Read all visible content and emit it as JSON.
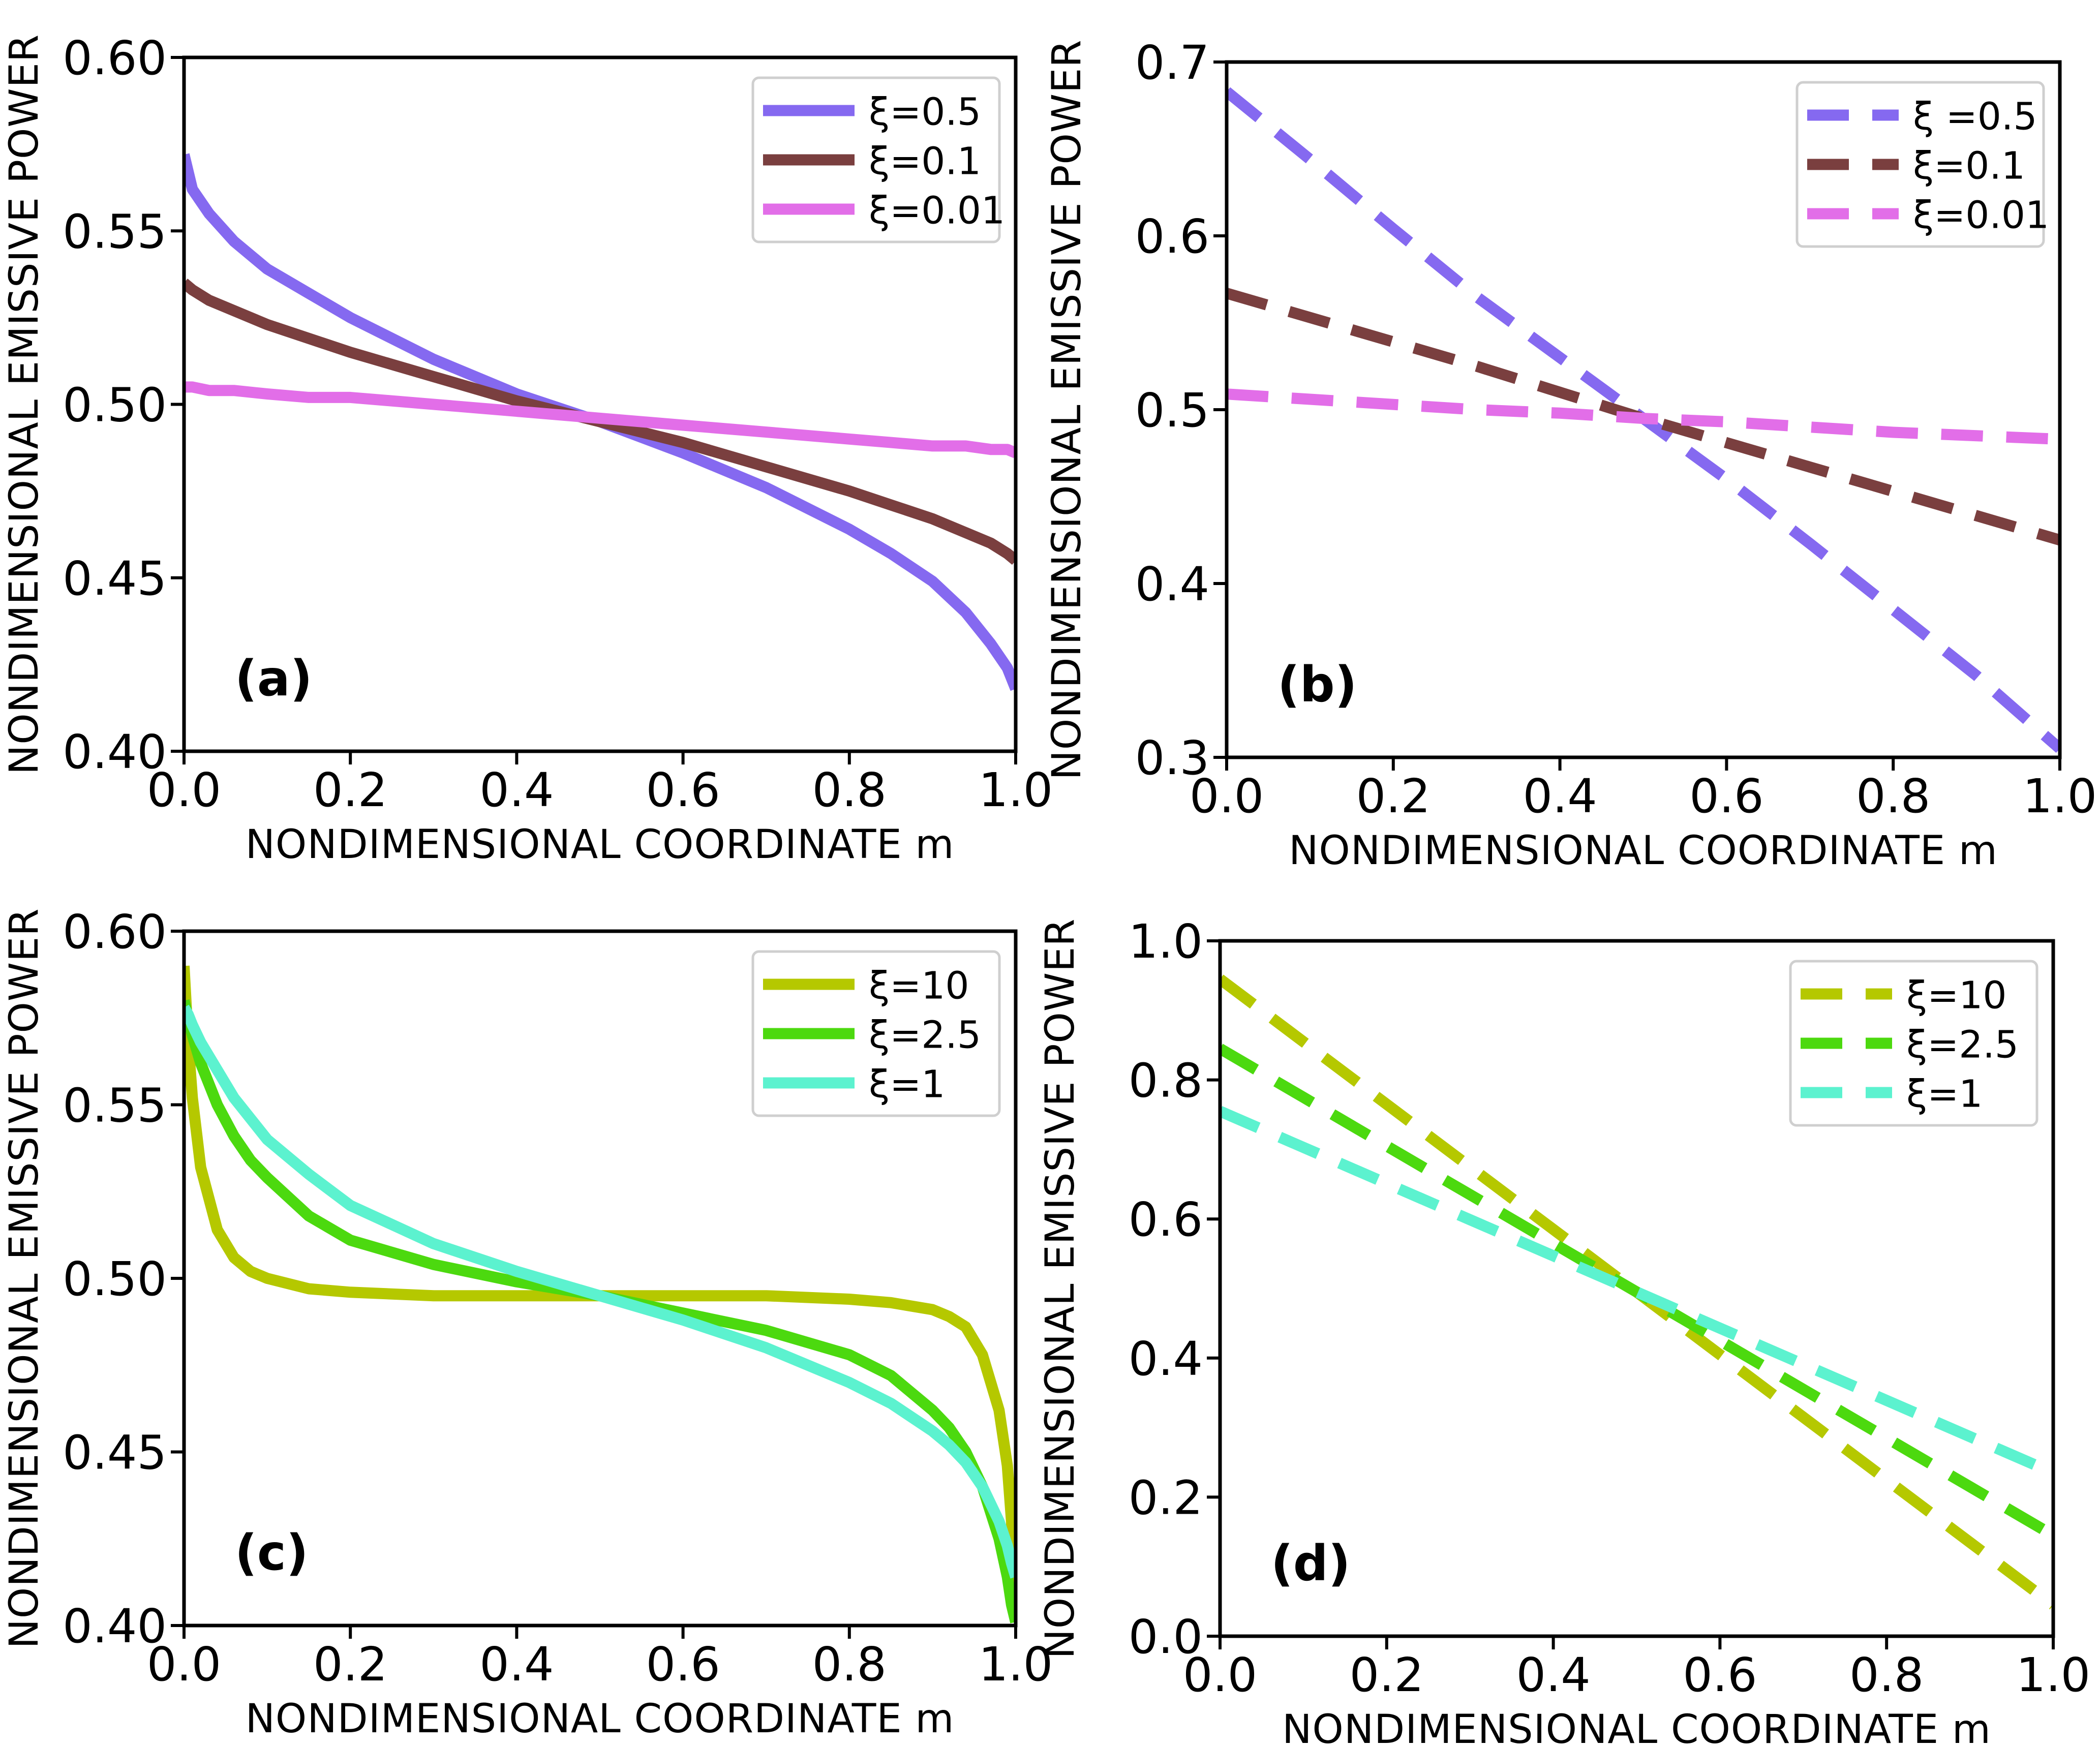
{
  "chart_data": [
    {
      "panel": "(a)",
      "type": "line",
      "line_style": "solid",
      "xlabel": "NONDIMENSIONAL COORDINATE m",
      "ylabel": "NONDIMENSIONAL EMISSIVE POWER",
      "xlim": [
        0.0,
        1.0
      ],
      "ylim": [
        0.4,
        0.6
      ],
      "xticks": [
        "0.0",
        "0.2",
        "0.4",
        "0.6",
        "0.8",
        "1.0"
      ],
      "yticks": [
        "0.40",
        "0.45",
        "0.50",
        "0.55",
        "0.60"
      ],
      "legend_position": "top-right",
      "grid": false,
      "x": [
        0.0,
        0.01,
        0.03,
        0.06,
        0.1,
        0.15,
        0.2,
        0.3,
        0.4,
        0.5,
        0.6,
        0.7,
        0.8,
        0.85,
        0.9,
        0.94,
        0.97,
        0.99,
        1.0
      ],
      "series": [
        {
          "name": "ξ=0.5",
          "color": "#8569f0",
          "values": [
            0.572,
            0.562,
            0.555,
            0.547,
            0.539,
            0.532,
            0.525,
            0.513,
            0.503,
            0.495,
            0.486,
            0.476,
            0.464,
            0.457,
            0.449,
            0.44,
            0.431,
            0.424,
            0.418
          ]
        },
        {
          "name": "ξ=0.1",
          "color": "#7a3f3f",
          "values": [
            0.535,
            0.533,
            0.53,
            0.527,
            0.523,
            0.519,
            0.515,
            0.508,
            0.501,
            0.495,
            0.489,
            0.482,
            0.475,
            0.471,
            0.467,
            0.463,
            0.46,
            0.457,
            0.455
          ]
        },
        {
          "name": "ξ=0.01",
          "color": "#e26ee8",
          "values": [
            0.505,
            0.505,
            0.504,
            0.504,
            0.503,
            0.502,
            0.502,
            0.5,
            0.498,
            0.496,
            0.494,
            0.492,
            0.49,
            0.489,
            0.488,
            0.488,
            0.487,
            0.487,
            0.486
          ]
        }
      ]
    },
    {
      "panel": "(b)",
      "type": "line",
      "line_style": "dashed",
      "xlabel": "NONDIMENSIONAL COORDINATE m",
      "ylabel": "NONDIMENSIONAL EMISSIVE POWER",
      "xlim": [
        0.0,
        1.0
      ],
      "ylim": [
        0.3,
        0.7
      ],
      "xticks": [
        "0.0",
        "0.2",
        "0.4",
        "0.6",
        "0.8",
        "1.0"
      ],
      "yticks": [
        "0.3",
        "0.4",
        "0.5",
        "0.6",
        "0.7"
      ],
      "legend_position": "top-right",
      "grid": false,
      "x": [
        0.0,
        0.1,
        0.2,
        0.3,
        0.4,
        0.5,
        0.6,
        0.7,
        0.8,
        0.9,
        1.0
      ],
      "series": [
        {
          "name": "ξ =0.5",
          "color": "#8569f0",
          "values": [
            0.683,
            0.644,
            0.604,
            0.565,
            0.53,
            0.495,
            0.46,
            0.423,
            0.385,
            0.347,
            0.305
          ]
        },
        {
          "name": "ξ=0.1",
          "color": "#7a3f3f",
          "values": [
            0.567,
            0.553,
            0.539,
            0.525,
            0.51,
            0.495,
            0.481,
            0.467,
            0.453,
            0.439,
            0.425
          ]
        },
        {
          "name": "ξ=0.01",
          "color": "#e26ee8",
          "values": [
            0.509,
            0.506,
            0.503,
            0.5,
            0.498,
            0.495,
            0.493,
            0.49,
            0.487,
            0.485,
            0.483
          ]
        }
      ]
    },
    {
      "panel": "(c)",
      "type": "line",
      "line_style": "solid",
      "xlabel": "NONDIMENSIONAL COORDINATE m",
      "ylabel": "NONDIMENSIONAL EMISSIVE POWER",
      "xlim": [
        0.0,
        1.0
      ],
      "ylim": [
        0.4,
        0.6
      ],
      "xticks": [
        "0.0",
        "0.2",
        "0.4",
        "0.6",
        "0.8",
        "1.0"
      ],
      "yticks": [
        "0.40",
        "0.45",
        "0.50",
        "0.55",
        "0.60"
      ],
      "legend_position": "top-right",
      "grid": false,
      "x": [
        0.0,
        0.005,
        0.01,
        0.02,
        0.04,
        0.06,
        0.08,
        0.1,
        0.15,
        0.2,
        0.3,
        0.4,
        0.5,
        0.6,
        0.7,
        0.8,
        0.85,
        0.9,
        0.92,
        0.94,
        0.96,
        0.98,
        0.99,
        0.995,
        1.0
      ],
      "series": [
        {
          "name": "ξ=10",
          "color": "#b5c800",
          "values": [
            0.59,
            0.568,
            0.552,
            0.532,
            0.514,
            0.506,
            0.502,
            0.5,
            0.497,
            0.496,
            0.495,
            0.495,
            0.495,
            0.495,
            0.495,
            0.494,
            0.493,
            0.491,
            0.489,
            0.486,
            0.478,
            0.462,
            0.446,
            0.43,
            0.402
          ]
        },
        {
          "name": "ξ=2.5",
          "color": "#4cd90f",
          "values": [
            0.58,
            0.575,
            0.57,
            0.562,
            0.55,
            0.541,
            0.534,
            0.529,
            0.518,
            0.511,
            0.504,
            0.499,
            0.495,
            0.49,
            0.485,
            0.478,
            0.472,
            0.462,
            0.457,
            0.45,
            0.44,
            0.425,
            0.414,
            0.406,
            0.401
          ]
        },
        {
          "name": "ξ=1",
          "color": "#5cf2cf",
          "values": [
            0.578,
            0.576,
            0.573,
            0.568,
            0.56,
            0.552,
            0.546,
            0.54,
            0.53,
            0.521,
            0.51,
            0.502,
            0.495,
            0.488,
            0.48,
            0.47,
            0.464,
            0.456,
            0.452,
            0.447,
            0.44,
            0.43,
            0.423,
            0.418,
            0.414
          ]
        }
      ]
    },
    {
      "panel": "(d)",
      "type": "line",
      "line_style": "dashed",
      "xlabel": "NONDIMENSIONAL COORDINATE m",
      "ylabel": "NONDIMENSIONAL EMISSIVE POWER",
      "xlim": [
        0.0,
        1.0
      ],
      "ylim": [
        0.0,
        1.0
      ],
      "xticks": [
        "0.0",
        "0.2",
        "0.4",
        "0.6",
        "0.8",
        "1.0"
      ],
      "yticks": [
        "0.0",
        "0.2",
        "0.4",
        "0.6",
        "0.8",
        "1.0"
      ],
      "legend_position": "top-right",
      "grid": false,
      "x": [
        0.0,
        0.1,
        0.2,
        0.3,
        0.4,
        0.5,
        0.6,
        0.7,
        0.8,
        0.9,
        1.0
      ],
      "series": [
        {
          "name": "ξ=10",
          "color": "#b5c800",
          "values": [
            0.945,
            0.855,
            0.765,
            0.675,
            0.585,
            0.495,
            0.405,
            0.315,
            0.225,
            0.135,
            0.045
          ]
        },
        {
          "name": "ξ=2.5",
          "color": "#4cd90f",
          "values": [
            0.845,
            0.775,
            0.705,
            0.635,
            0.565,
            0.495,
            0.425,
            0.355,
            0.285,
            0.215,
            0.145
          ]
        },
        {
          "name": "ξ=1",
          "color": "#5cf2cf",
          "values": [
            0.755,
            0.703,
            0.651,
            0.599,
            0.547,
            0.495,
            0.443,
            0.391,
            0.339,
            0.287,
            0.235
          ]
        }
      ]
    }
  ]
}
